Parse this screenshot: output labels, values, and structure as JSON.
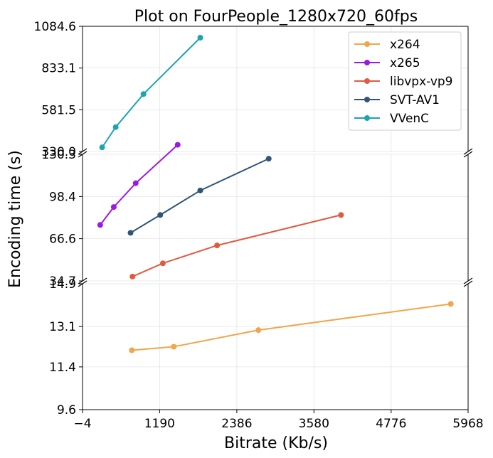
{
  "chart_data": {
    "type": "line",
    "title": "Plot on FourPeople_1280x720_60fps",
    "xlabel": "Bitrate (Kb/s)",
    "ylabel": "Encoding time (s)",
    "xlim": [
      -4,
      5968
    ],
    "x_ticks": [
      -4,
      1190,
      2386,
      3580,
      4776,
      5968
    ],
    "x_tick_labels": [
      "−4",
      "1190",
      "2386",
      "3580",
      "4776",
      "5968"
    ],
    "broken_y_axis": true,
    "grid": true,
    "legend_position": "top-right",
    "panels": [
      {
        "ylim": [
          330.0,
          1084.6
        ],
        "y_ticks": [
          330.0,
          581.5,
          833.1,
          1084.6
        ],
        "y_tick_labels": [
          "330.0",
          "581.5",
          "833.1",
          "1084.6"
        ]
      },
      {
        "ylim": [
          34.7,
          130.3
        ],
        "y_ticks": [
          34.7,
          66.6,
          98.4,
          130.3
        ],
        "y_tick_labels": [
          "34.7",
          "66.6",
          "98.4",
          "130.3"
        ]
      },
      {
        "ylim": [
          9.6,
          14.9
        ],
        "y_ticks": [
          9.6,
          11.4,
          13.1,
          14.9
        ],
        "y_tick_labels": [
          "9.6",
          "11.4",
          "13.1",
          "14.9"
        ]
      }
    ],
    "series": [
      {
        "name": "x264",
        "color": "#f0a64a",
        "panel": 2,
        "points": [
          [
            760,
            12.1
          ],
          [
            1410,
            12.25
          ],
          [
            2720,
            12.95
          ],
          [
            5700,
            14.05
          ]
        ]
      },
      {
        "name": "x265",
        "color": "#9b1ae0",
        "panel": 1,
        "points": [
          [
            270,
            77.0
          ],
          [
            480,
            90.5
          ],
          [
            820,
            108.5
          ],
          [
            1470,
            137.5
          ]
        ]
      },
      {
        "name": "libvpx-vp9",
        "color": "#e05a3f",
        "panel": 1,
        "points": [
          [
            770,
            38.0
          ],
          [
            1240,
            48.0
          ],
          [
            2080,
            61.5
          ],
          [
            4000,
            84.5
          ]
        ]
      },
      {
        "name": "SVT-AV1",
        "color": "#2f5577",
        "panel": 1,
        "points": [
          [
            740,
            71.0
          ],
          [
            1200,
            84.5
          ],
          [
            1820,
            103.0
          ],
          [
            2880,
            127.0
          ]
        ]
      },
      {
        "name": "VVenC",
        "color": "#1aa5b2",
        "panel": 0,
        "points": [
          [
            300,
            355.0
          ],
          [
            510,
            477.0
          ],
          [
            940,
            676.0
          ],
          [
            1820,
            1016.0
          ]
        ]
      }
    ]
  }
}
